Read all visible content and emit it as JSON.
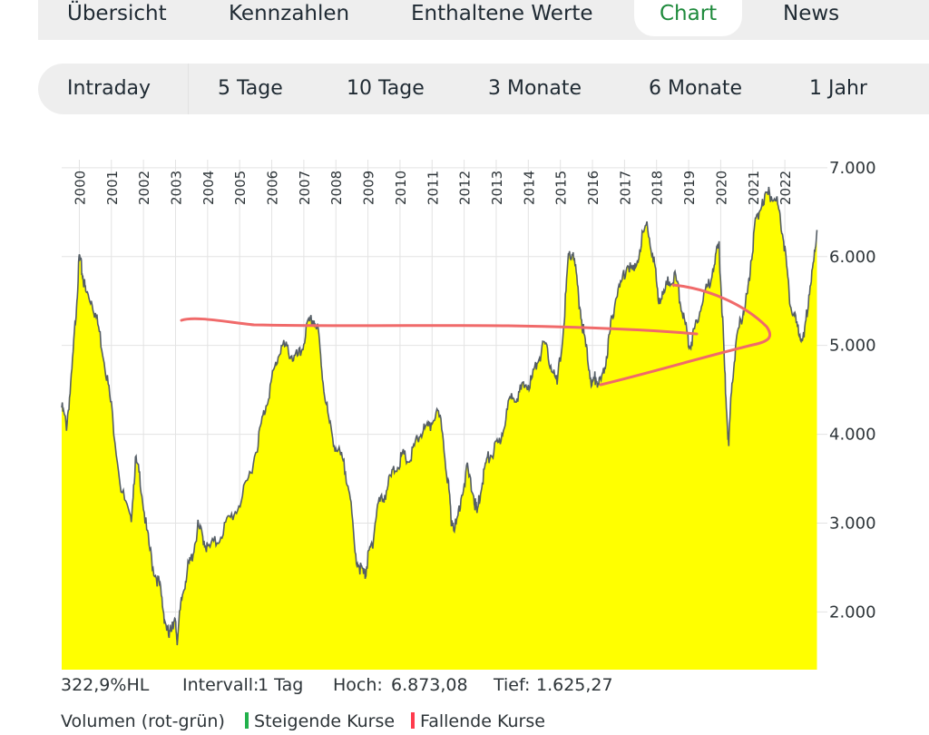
{
  "tabs": [
    {
      "label": "Übersicht",
      "active": false
    },
    {
      "label": "Kennzahlen",
      "active": false
    },
    {
      "label": "Enthaltene Werte",
      "active": false
    },
    {
      "label": "Chart",
      "active": true
    },
    {
      "label": "News",
      "active": false
    }
  ],
  "ranges": [
    "Intraday",
    "5 Tage",
    "10 Tage",
    "3 Monate",
    "6 Monate",
    "1 Jahr"
  ],
  "colors": {
    "active_tab": "#1e8a3c",
    "area_fill": "#ffff00",
    "line": "#555e66",
    "annotation": "#f06a6a",
    "rising": "#22b14c",
    "falling": "#ff3b4d"
  },
  "chart_data": {
    "type": "area",
    "y_tick_labels": [
      "2.000",
      "3.000",
      "4.000",
      "5.000",
      "6.000",
      "7.000"
    ],
    "ylim": [
      1350,
      7050
    ],
    "x_tick_labels": [
      "2000",
      "2001",
      "2002",
      "2003",
      "2004",
      "2005",
      "2006",
      "2007",
      "2008",
      "2009",
      "2010",
      "2011",
      "2012",
      "2013",
      "2014",
      "2015",
      "2016",
      "2017",
      "2018",
      "2019",
      "2020",
      "2021",
      "2022"
    ],
    "xlim": [
      1999.45,
      2023.1
    ],
    "x": [
      1999.45,
      1999.6,
      1999.75,
      1999.9,
      2000.0,
      2000.1,
      2000.2,
      2000.4,
      2000.6,
      2000.8,
      2001.0,
      2001.3,
      2001.6,
      2001.75,
      2001.9,
      2002.1,
      2002.3,
      2002.5,
      2002.65,
      2002.8,
      2002.9,
      2003.0,
      2003.05,
      2003.2,
      2003.35,
      2003.5,
      2003.7,
      2003.85,
      2004.0,
      2004.3,
      2004.6,
      2004.9,
      2005.2,
      2005.5,
      2005.7,
      2005.9,
      2006.1,
      2006.3,
      2006.5,
      2006.7,
      2006.9,
      2007.1,
      2007.3,
      2007.45,
      2007.6,
      2007.8,
      2008.0,
      2008.2,
      2008.4,
      2008.6,
      2008.75,
      2008.9,
      2009.0,
      2009.15,
      2009.3,
      2009.5,
      2009.7,
      2009.9,
      2010.1,
      2010.3,
      2010.5,
      2010.7,
      2010.9,
      2011.1,
      2011.3,
      2011.5,
      2011.6,
      2011.75,
      2011.9,
      2012.1,
      2012.3,
      2012.4,
      2012.55,
      2012.7,
      2012.9,
      2013.1,
      2013.3,
      2013.5,
      2013.7,
      2013.9,
      2014.1,
      2014.3,
      2014.5,
      2014.7,
      2014.9,
      2015.1,
      2015.25,
      2015.4,
      2015.55,
      2015.7,
      2015.85,
      2016.0,
      2016.1,
      2016.25,
      2016.4,
      2016.55,
      2016.7,
      2016.9,
      2017.1,
      2017.3,
      2017.5,
      2017.7,
      2017.9,
      2018.05,
      2018.2,
      2018.4,
      2018.6,
      2018.75,
      2018.9,
      2019.05,
      2019.2,
      2019.4,
      2019.6,
      2019.8,
      2019.95,
      2020.05,
      2020.15,
      2020.25,
      2020.35,
      2020.5,
      2020.7,
      2020.85,
      2020.95,
      2021.1,
      2021.3,
      2021.5,
      2021.7,
      2021.85,
      2022.0,
      2022.15,
      2022.3,
      2022.45,
      2022.6,
      2022.75,
      2022.9,
      2023.0
    ],
    "values": [
      4300,
      4100,
      4600,
      5400,
      6000,
      5800,
      5600,
      5500,
      5200,
      4800,
      4300,
      3400,
      3000,
      3700,
      3500,
      2900,
      2500,
      2300,
      1950,
      1700,
      1900,
      1850,
      1700,
      2150,
      2450,
      2600,
      2950,
      2850,
      2700,
      2800,
      3000,
      3150,
      3400,
      3800,
      4150,
      4450,
      4750,
      5000,
      4950,
      4850,
      4900,
      5200,
      5300,
      5150,
      4600,
      4100,
      3850,
      3700,
      3450,
      2650,
      2500,
      2400,
      2600,
      2800,
      3200,
      3300,
      3500,
      3650,
      3750,
      3700,
      3900,
      4050,
      4050,
      4250,
      4100,
      3450,
      3050,
      2950,
      3300,
      3600,
      3300,
      3100,
      3450,
      3700,
      3800,
      3900,
      4200,
      4450,
      4450,
      4550,
      4600,
      4850,
      5000,
      4800,
      4550,
      5200,
      6000,
      6050,
      5600,
      5200,
      4850,
      4550,
      4650,
      4550,
      4800,
      5150,
      5500,
      5700,
      5950,
      5800,
      6150,
      6350,
      6000,
      5550,
      5550,
      5750,
      5750,
      5500,
      5200,
      5000,
      5200,
      5500,
      5650,
      5950,
      6100,
      5350,
      4500,
      3850,
      4600,
      5050,
      5400,
      5600,
      6000,
      6400,
      6650,
      6700,
      6700,
      6450,
      6100,
      5500,
      5300,
      5150,
      5050,
      5600,
      5900,
      6300
    ],
    "x_tick_label_color": "#2d3438",
    "grid": "vertical per year, horizontal per 1.000",
    "annotation": "hand-drawn red arrow"
  },
  "stats": {
    "performance": "322,9%HL",
    "intervall_label": "Intervall:",
    "intervall_value": "1 Tag",
    "hoch_label": "Hoch:",
    "hoch_value": "6.873,08",
    "tief_label": "Tief:",
    "tief_value": "1.625,27"
  },
  "legend": {
    "volumen": "Volumen (rot-grün)",
    "steigende": "Steigende Kurse",
    "fallende": "Fallende Kurse"
  }
}
